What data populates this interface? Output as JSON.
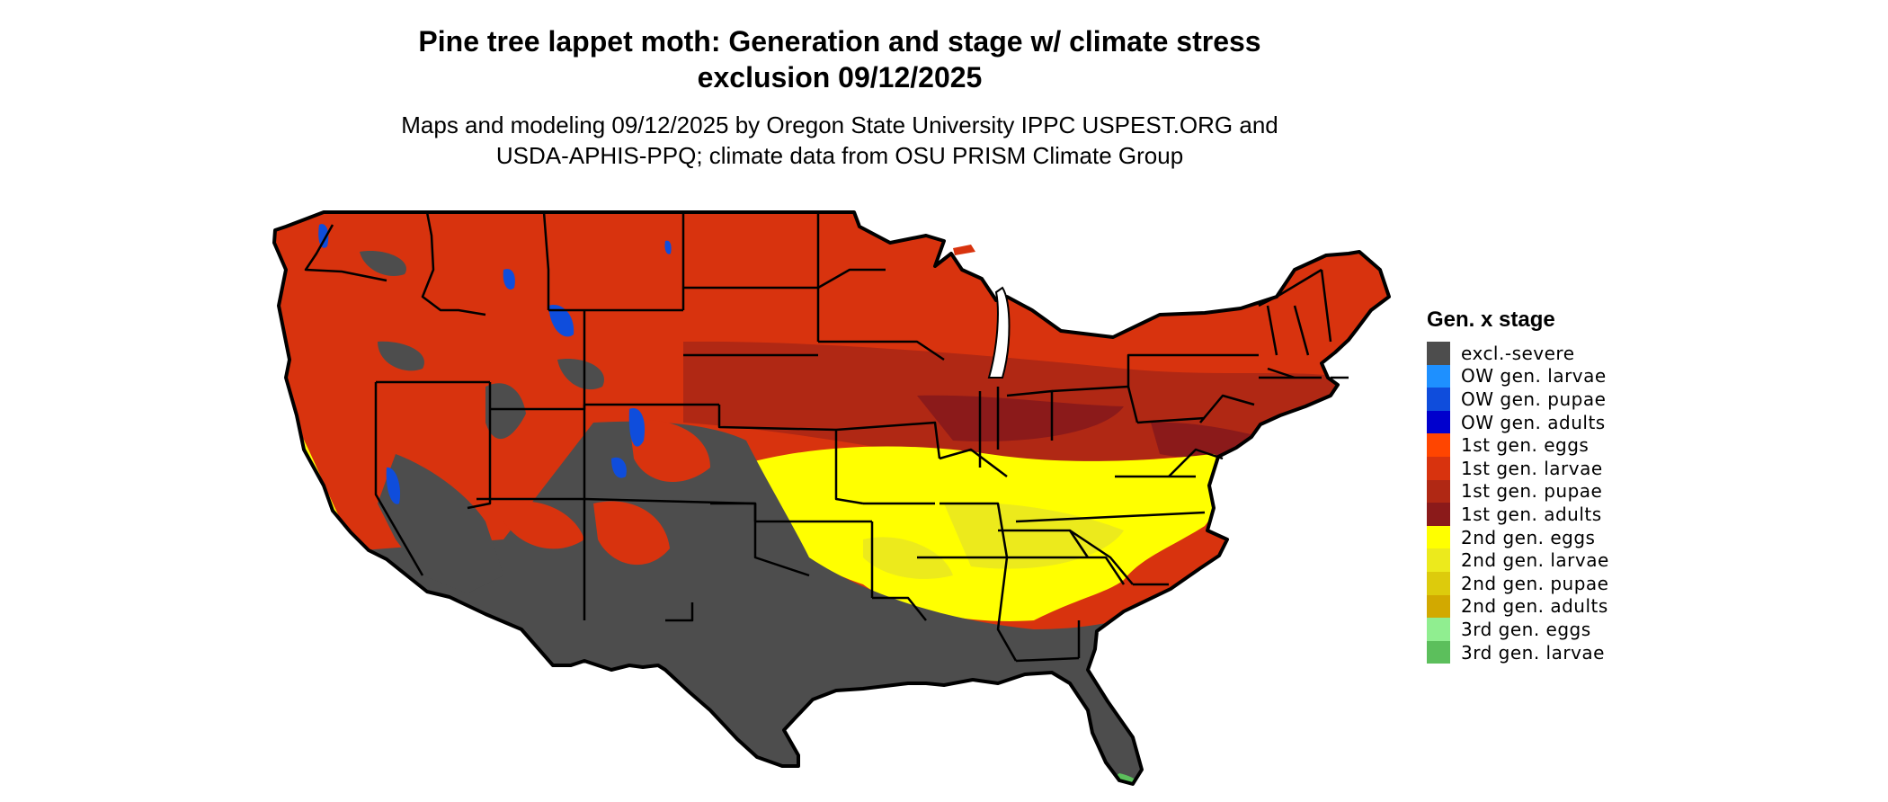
{
  "figure": {
    "title_line1": "Pine tree lappet moth: Generation and stage w/ climate stress",
    "title_line2": "exclusion 09/12/2025",
    "subtitle_line1": "Maps and modeling 09/12/2025 by Oregon State University IPPC USPEST.ORG and",
    "subtitle_line2": "USDA-APHIS-PPQ; climate data from OSU PRISM Climate Group"
  },
  "legend": {
    "title": "Gen. x stage",
    "items": [
      {
        "label": "excl.-severe",
        "color": "#4d4d4d"
      },
      {
        "label": "OW gen. larvae",
        "color": "#1e90ff"
      },
      {
        "label": "OW gen. pupae",
        "color": "#0f4ddc"
      },
      {
        "label": "OW gen. adults",
        "color": "#0000cd"
      },
      {
        "label": "1st gen. eggs",
        "color": "#ff4500"
      },
      {
        "label": "1st gen. larvae",
        "color": "#d8330e"
      },
      {
        "label": "1st gen. pupae",
        "color": "#b02814"
      },
      {
        "label": "1st gen. adults",
        "color": "#8b1a1a"
      },
      {
        "label": "2nd gen. eggs",
        "color": "#ffff00"
      },
      {
        "label": "2nd gen. larvae",
        "color": "#ecea1c"
      },
      {
        "label": "2nd gen. pupae",
        "color": "#ddcb0c"
      },
      {
        "label": "2nd gen. adults",
        "color": "#d2a900"
      },
      {
        "label": "3rd gen. eggs",
        "color": "#90ee90"
      },
      {
        "label": "3rd gen. larvae",
        "color": "#5cbf5c"
      }
    ]
  }
}
